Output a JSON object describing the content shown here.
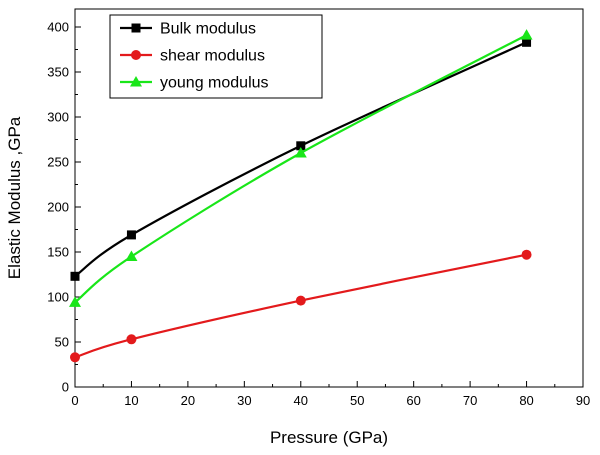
{
  "chart_data": {
    "type": "line",
    "xlabel": "Pressure (GPa)",
    "ylabel": "Elastic Modulus ,GPa",
    "xlim": [
      0,
      90
    ],
    "ylim": [
      0,
      420
    ],
    "xticks": [
      0,
      10,
      20,
      30,
      40,
      50,
      60,
      70,
      80,
      90
    ],
    "yticks": [
      0,
      50,
      100,
      150,
      200,
      250,
      300,
      350,
      400
    ],
    "grid": false,
    "legend_position": "top-left",
    "series": [
      {
        "name": "Bulk modulus",
        "color": "#000000",
        "marker": "square",
        "x": [
          0,
          10,
          40,
          80
        ],
        "y": [
          123,
          169,
          268,
          383
        ]
      },
      {
        "name": "shear modulus",
        "color": "#e31a1c",
        "marker": "circle",
        "x": [
          0,
          10,
          40,
          80
        ],
        "y": [
          33,
          53,
          96,
          147
        ]
      },
      {
        "name": "young modulus",
        "color": "#19e619",
        "marker": "triangle",
        "x": [
          0,
          10,
          40,
          80
        ],
        "y": [
          94,
          145,
          260,
          391
        ]
      }
    ]
  }
}
